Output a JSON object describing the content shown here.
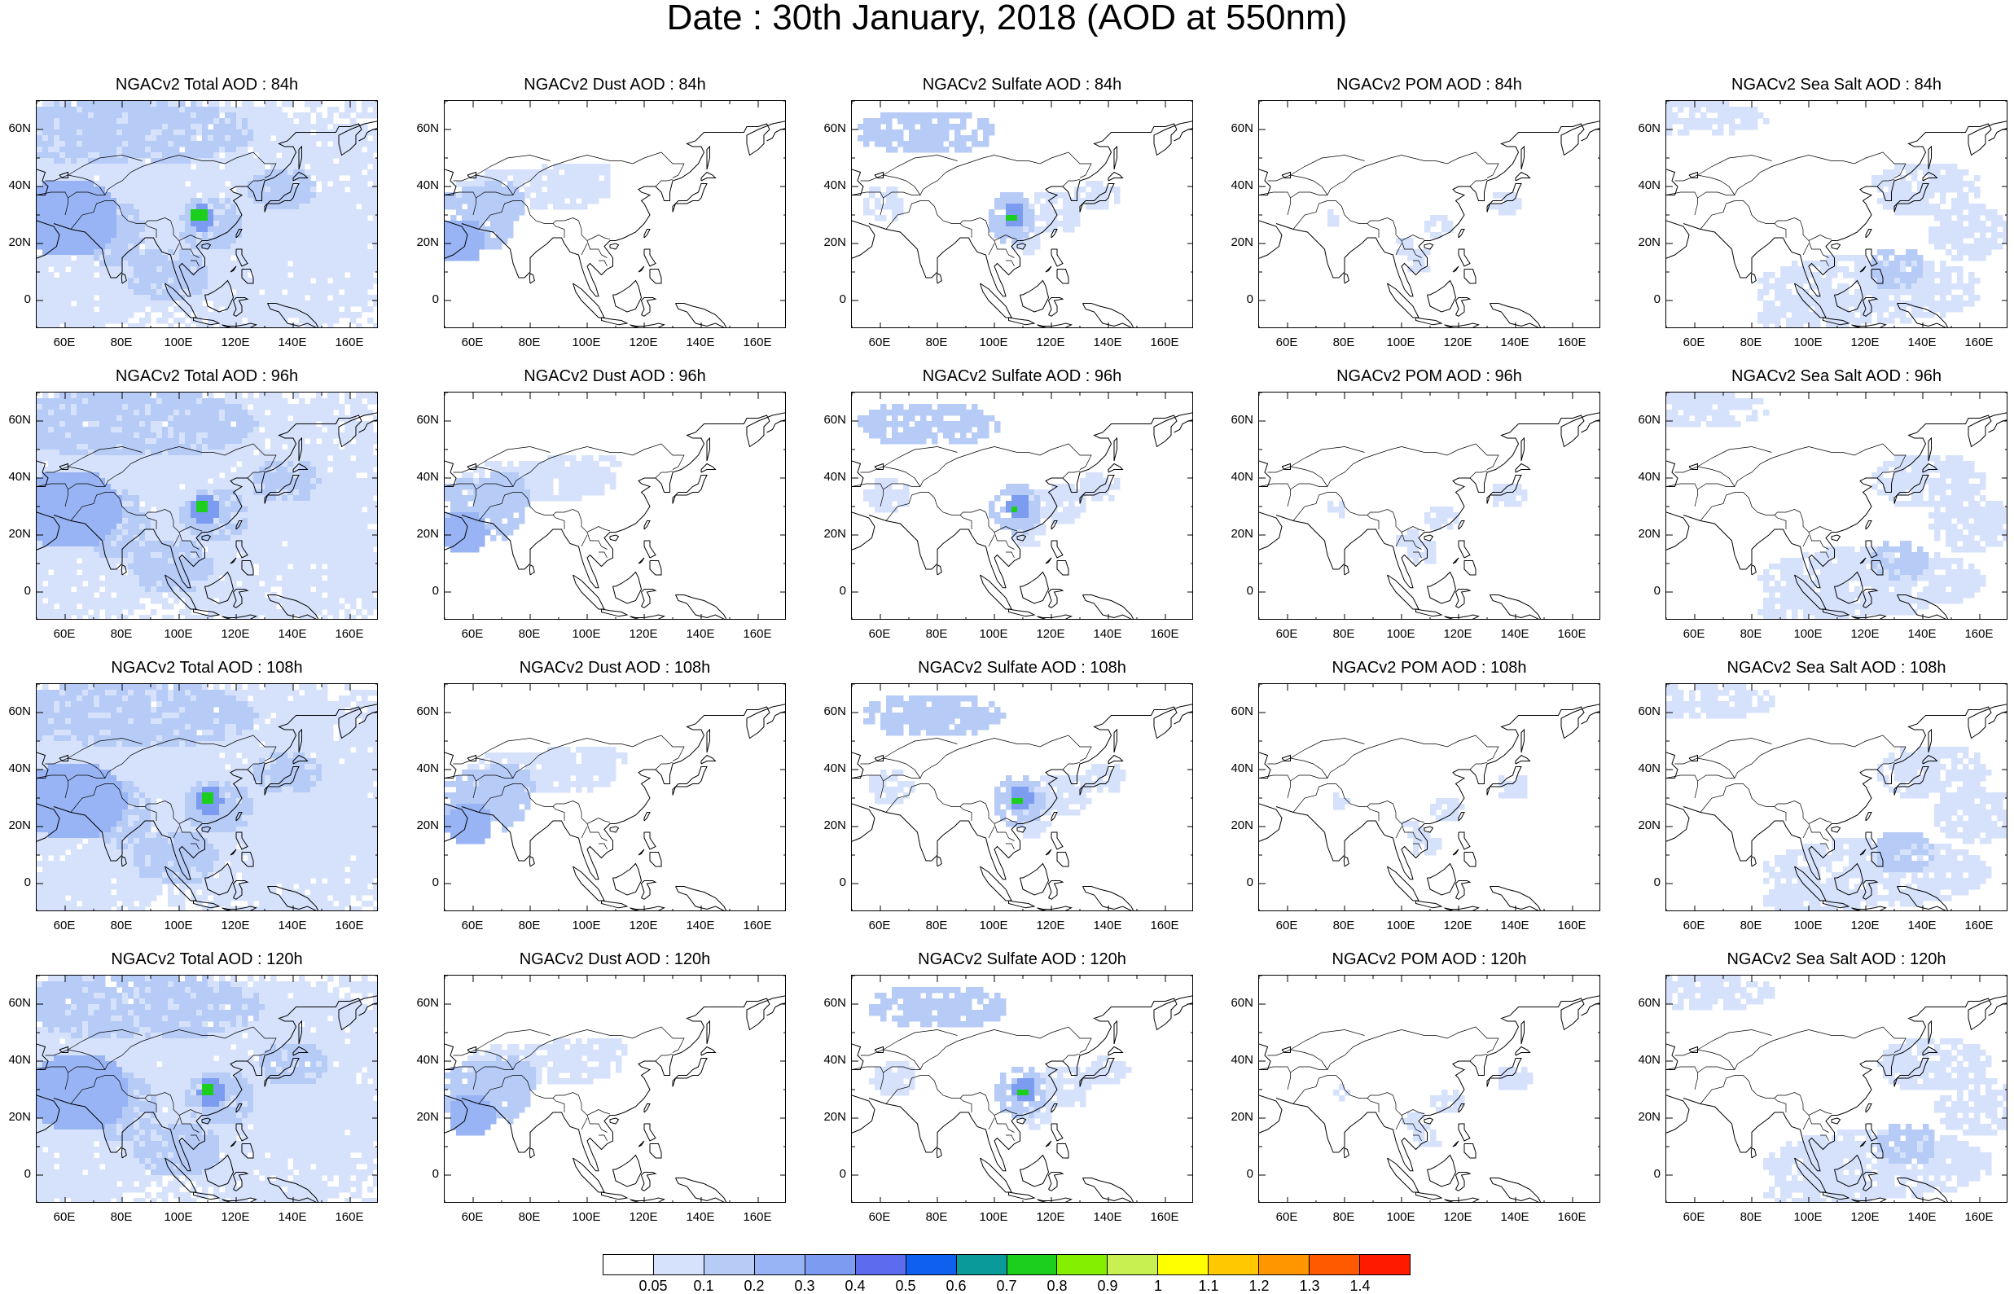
{
  "title": "Date : 30th January, 2018 (AOD at 550nm)",
  "panels": [
    [
      "NGACv2 Total AOD : 84h",
      "NGACv2 Dust AOD : 84h",
      "NGACv2 Sulfate AOD : 84h",
      "NGACv2 POM AOD : 84h",
      "NGACv2 Sea Salt AOD : 84h"
    ],
    [
      "NGACv2 Total AOD : 96h",
      "NGACv2 Dust AOD : 96h",
      "NGACv2 Sulfate AOD : 96h",
      "NGACv2 POM AOD : 96h",
      "NGACv2 Sea Salt AOD : 96h"
    ],
    [
      "NGACv2 Total AOD : 108h",
      "NGACv2 Dust AOD : 108h",
      "NGACv2 Sulfate AOD : 108h",
      "NGACv2 POM AOD : 108h",
      "NGACv2 Sea Salt AOD : 108h"
    ],
    [
      "NGACv2 Total AOD : 120h",
      "NGACv2 Dust AOD : 120h",
      "NGACv2 Sulfate AOD : 120h",
      "NGACv2 POM AOD : 120h",
      "NGACv2 Sea Salt  AOD : 120h"
    ]
  ],
  "lat_ticks": [
    "60N",
    "40N",
    "20N",
    "0"
  ],
  "lon_ticks": [
    "60E",
    "80E",
    "100E",
    "120E",
    "140E",
    "160E"
  ],
  "colorbar": {
    "labels": [
      "0.05",
      "0.1",
      "0.2",
      "0.3",
      "0.4",
      "0.5",
      "0.6",
      "0.7",
      "0.8",
      "0.9",
      "1",
      "1.1",
      "1.2",
      "1.3",
      "1.4"
    ],
    "colors": [
      "#ffffff",
      "#d6e2fb",
      "#b7cbf7",
      "#98b4f4",
      "#7c9cf2",
      "#5d6cee",
      "#1060f0",
      "#0a9a9a",
      "#1ccf1c",
      "#84f000",
      "#c8f050",
      "#ffff00",
      "#ffc800",
      "#ff9600",
      "#ff5a00",
      "#ff1a00"
    ]
  }
}
